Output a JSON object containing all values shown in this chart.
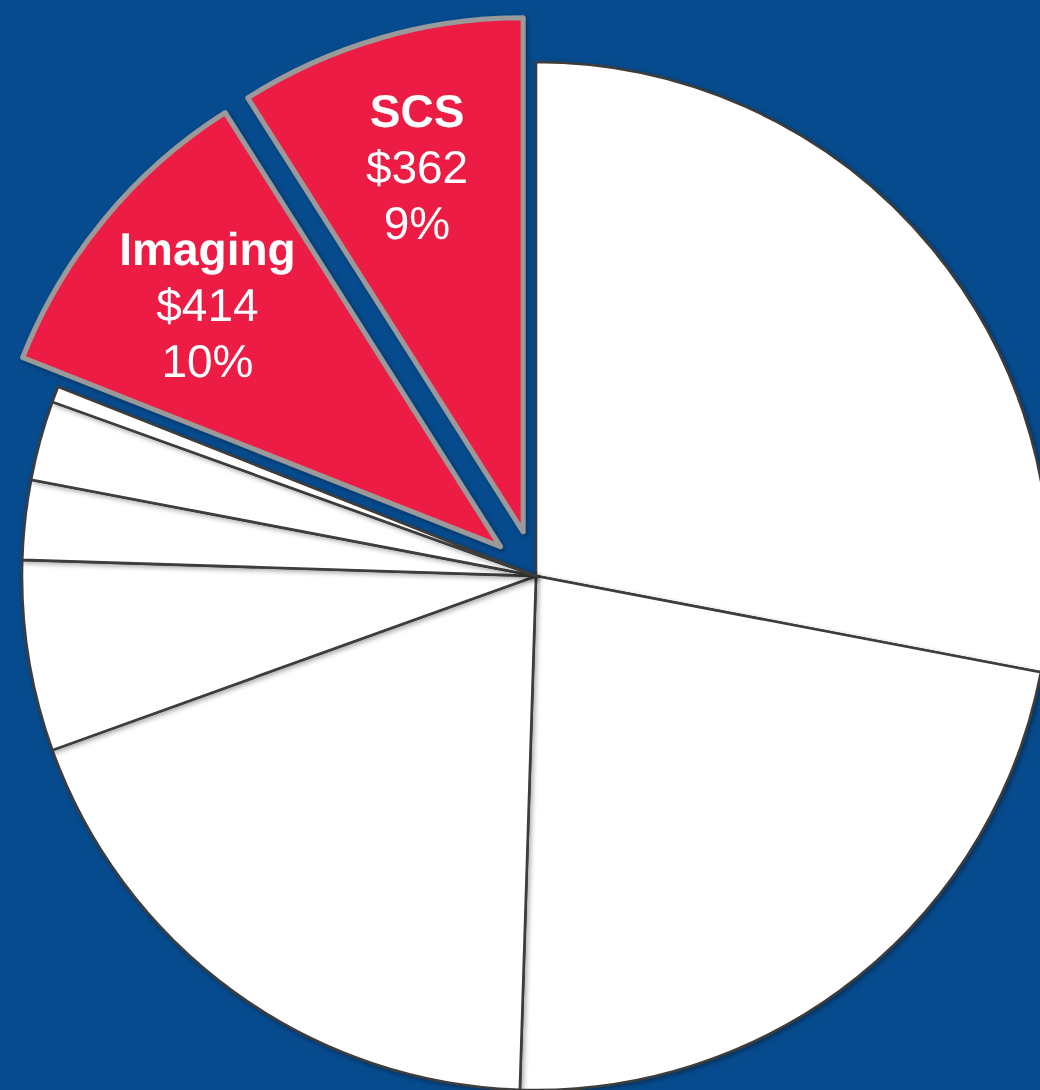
{
  "chart_data": {
    "type": "pie",
    "categories": [
      null,
      null,
      null,
      null,
      null,
      null,
      null,
      "Imaging",
      "SCS"
    ],
    "values": [
      28,
      22.5,
      19,
      6,
      2.5,
      2.5,
      0.5,
      10,
      9
    ],
    "colors": [
      "#ffffff",
      "#ffffff",
      "#ffffff",
      "#ffffff",
      "#ffffff",
      "#ffffff",
      "#ffffff",
      "#ed1f45",
      "#ed1f45"
    ],
    "value_labels": [
      null,
      null,
      null,
      null,
      null,
      null,
      null,
      "$414\n10%",
      "$362\n9%"
    ]
  }
}
